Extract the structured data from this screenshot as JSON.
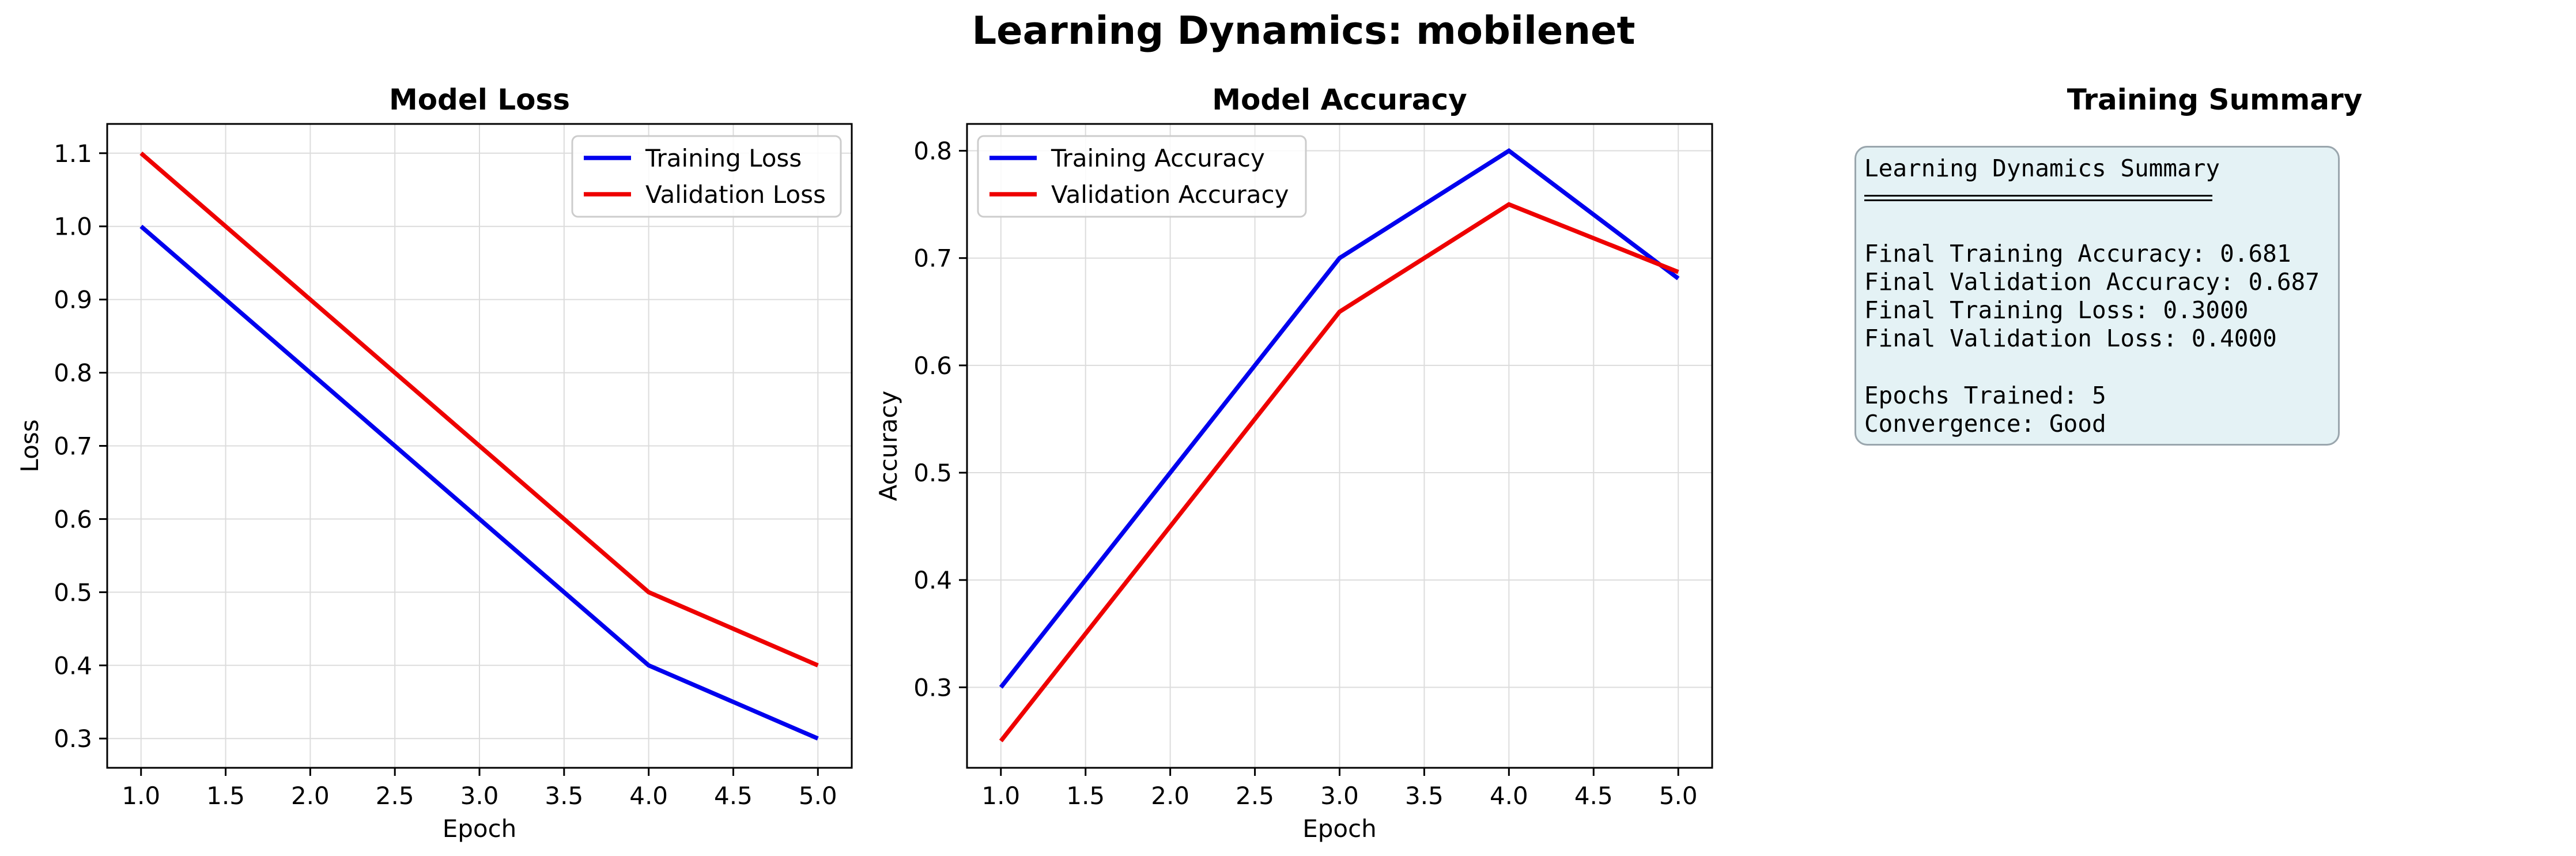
{
  "figure": {
    "suptitle": "Learning Dynamics: mobilenet"
  },
  "colors": {
    "training": "#0000ee",
    "validation": "#ee0000",
    "grid": "#dcdcdc",
    "summary_bg": "#e4f2f5",
    "summary_border": "#9aa6ad"
  },
  "chart_data": [
    {
      "type": "line",
      "title": "Model Loss",
      "xlabel": "Epoch",
      "ylabel": "Loss",
      "x": [
        1.0,
        4.0,
        5.0
      ],
      "xlim": [
        0.8,
        5.2
      ],
      "ylim": [
        0.26,
        1.14
      ],
      "xticks": [
        "1.0",
        "1.5",
        "2.0",
        "2.5",
        "3.0",
        "3.5",
        "4.0",
        "4.5",
        "5.0"
      ],
      "yticks": [
        "0.3",
        "0.4",
        "0.5",
        "0.6",
        "0.7",
        "0.8",
        "0.9",
        "1.0",
        "1.1"
      ],
      "grid": true,
      "legend_position": "top-right",
      "series": [
        {
          "name": "Training Loss",
          "color": "#0000ee",
          "x": [
            1.0,
            4.0,
            5.0
          ],
          "values": [
            1.0,
            0.4,
            0.3
          ]
        },
        {
          "name": "Validation Loss",
          "color": "#ee0000",
          "x": [
            1.0,
            4.0,
            5.0
          ],
          "values": [
            1.1,
            0.5,
            0.4
          ]
        }
      ]
    },
    {
      "type": "line",
      "title": "Model Accuracy",
      "xlabel": "Epoch",
      "ylabel": "Accuracy",
      "xlim": [
        0.8,
        5.2
      ],
      "ylim": [
        0.225,
        0.825
      ],
      "xticks": [
        "1.0",
        "1.5",
        "2.0",
        "2.5",
        "3.0",
        "3.5",
        "4.0",
        "4.5",
        "5.0"
      ],
      "yticks": [
        "0.3",
        "0.4",
        "0.5",
        "0.6",
        "0.7",
        "0.8"
      ],
      "grid": true,
      "legend_position": "top-left",
      "series": [
        {
          "name": "Training Accuracy",
          "color": "#0000ee",
          "x": [
            1.0,
            3.0,
            4.0,
            5.0
          ],
          "values": [
            0.3,
            0.7,
            0.8,
            0.681
          ]
        },
        {
          "name": "Validation Accuracy",
          "color": "#ee0000",
          "x": [
            1.0,
            3.0,
            4.0,
            5.0
          ],
          "values": [
            0.25,
            0.65,
            0.75,
            0.687
          ]
        }
      ]
    }
  ],
  "summary": {
    "title": "Training Summary",
    "heading": "Learning Dynamics Summary",
    "lines": [
      "Final Training Accuracy: 0.681",
      "Final Validation Accuracy: 0.687",
      "Final Training Loss: 0.3000",
      "Final Validation Loss: 0.4000",
      "",
      "Epochs Trained: 5",
      "Convergence: Good"
    ]
  }
}
